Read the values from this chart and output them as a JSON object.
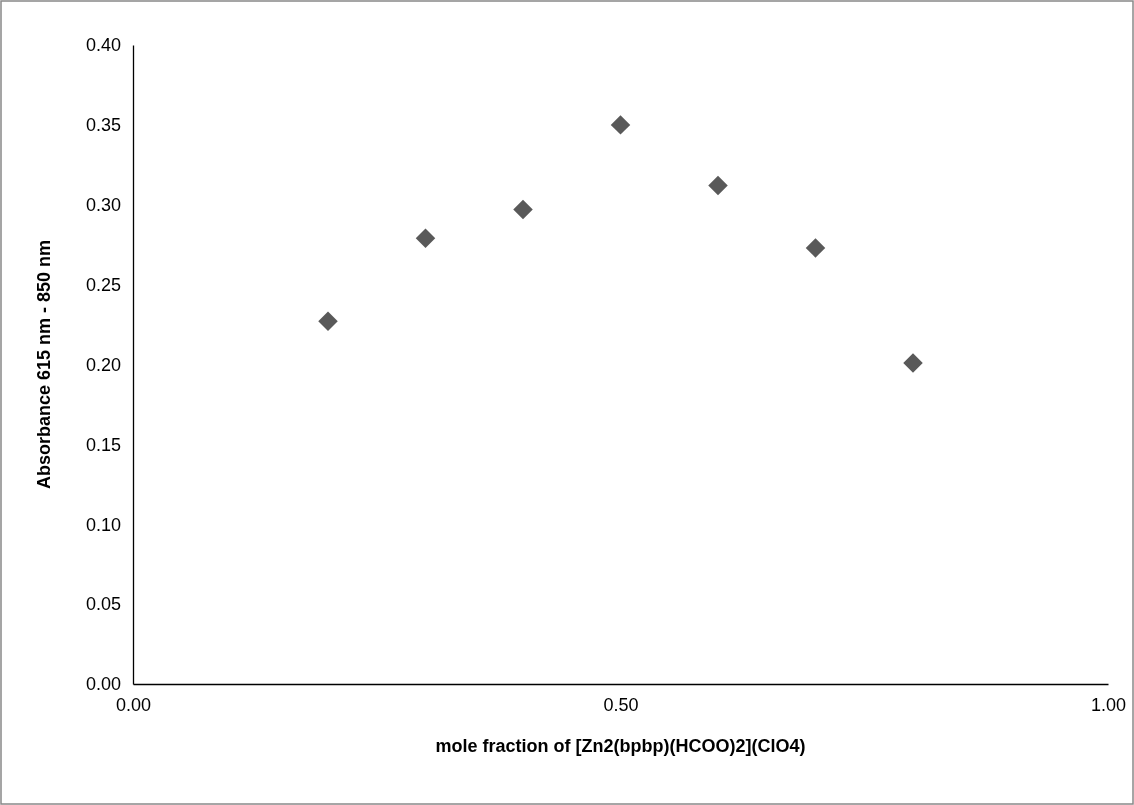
{
  "chart_data": {
    "type": "scatter",
    "xlabel": "mole fraction of [Zn2(bpbp)(HCOO)2](ClO4)",
    "ylabel": "Absorbance 615 nm - 850 nm",
    "x": [
      0.2,
      0.3,
      0.4,
      0.5,
      0.6,
      0.7,
      0.8
    ],
    "series": [
      {
        "color": "#595959",
        "values": [
          0.227,
          0.279,
          0.297,
          0.35,
          0.312,
          0.273,
          0.201
        ]
      }
    ],
    "xlim": [
      0,
      1
    ],
    "xticks": [
      {
        "value": 0,
        "label": "0.00"
      },
      {
        "value": 0.5,
        "label": "0.50"
      },
      {
        "value": 1,
        "label": "1.00"
      }
    ],
    "ylim": [
      0,
      0.4
    ],
    "yticks": [
      {
        "value": 0,
        "label": "0.00"
      },
      {
        "value": 0.05,
        "label": "0.05"
      },
      {
        "value": 0.1,
        "label": "0.10"
      },
      {
        "value": 0.15,
        "label": "0.15"
      },
      {
        "value": 0.2,
        "label": "0.20"
      },
      {
        "value": 0.25,
        "label": "0.25"
      },
      {
        "value": 0.3,
        "label": "0.30"
      },
      {
        "value": 0.35,
        "label": "0.35"
      },
      {
        "value": 0.4,
        "label": "0.40"
      }
    ],
    "grid": false,
    "marker": "diamond"
  }
}
